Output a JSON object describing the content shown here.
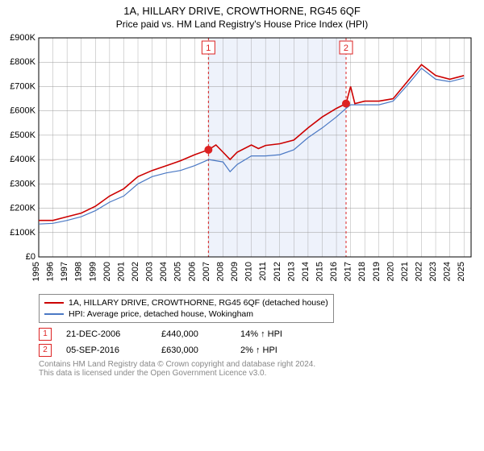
{
  "title": "1A, HILLARY DRIVE, CROWTHORNE, RG45 6QF",
  "subtitle": "Price paid vs. HM Land Registry's House Price Index (HPI)",
  "chart": {
    "type": "line",
    "background_color": "#ffffff",
    "grid_color": "#999999",
    "axis_color": "#000000",
    "band_fill": "#eef2fb",
    "event_dash_color": "#d22",
    "label_fontsize": 11,
    "title_fontsize": 13,
    "ylim": [
      0,
      900000
    ],
    "ytick_step": 100000,
    "ytick_labels": [
      "£0",
      "£100K",
      "£200K",
      "£300K",
      "£400K",
      "£500K",
      "£600K",
      "£700K",
      "£800K",
      "£900K"
    ],
    "x_years": [
      1995,
      1996,
      1997,
      1998,
      1999,
      2000,
      2001,
      2002,
      2003,
      2004,
      2005,
      2006,
      2007,
      2008,
      2009,
      2010,
      2011,
      2012,
      2013,
      2014,
      2015,
      2016,
      2017,
      2018,
      2019,
      2020,
      2021,
      2022,
      2023,
      2024,
      2025
    ],
    "xlim": [
      1995,
      2025.5
    ],
    "band": {
      "start": 2006.97,
      "end": 2016.68
    },
    "series": [
      {
        "name": "property",
        "label": "1A, HILLARY DRIVE, CROWTHORNE, RG45 6QF (detached house)",
        "color": "#cc0000",
        "line_width": 1.6,
        "points": [
          [
            1995,
            150000
          ],
          [
            1996,
            150000
          ],
          [
            1997,
            165000
          ],
          [
            1998,
            180000
          ],
          [
            1999,
            208000
          ],
          [
            2000,
            250000
          ],
          [
            2001,
            280000
          ],
          [
            2002,
            330000
          ],
          [
            2003,
            355000
          ],
          [
            2004,
            375000
          ],
          [
            2005,
            395000
          ],
          [
            2006,
            420000
          ],
          [
            2006.97,
            440000
          ],
          [
            2007.5,
            460000
          ],
          [
            2008,
            430000
          ],
          [
            2008.5,
            400000
          ],
          [
            2009,
            430000
          ],
          [
            2010,
            460000
          ],
          [
            2010.5,
            445000
          ],
          [
            2011,
            458000
          ],
          [
            2012,
            465000
          ],
          [
            2013,
            480000
          ],
          [
            2014,
            530000
          ],
          [
            2015,
            575000
          ],
          [
            2016,
            610000
          ],
          [
            2016.68,
            630000
          ],
          [
            2017,
            700000
          ],
          [
            2017.3,
            630000
          ],
          [
            2018,
            640000
          ],
          [
            2019,
            640000
          ],
          [
            2020,
            650000
          ],
          [
            2021,
            720000
          ],
          [
            2022,
            790000
          ],
          [
            2023,
            745000
          ],
          [
            2024,
            730000
          ],
          [
            2025,
            745000
          ]
        ]
      },
      {
        "name": "hpi",
        "label": "HPI: Average price, detached house, Wokingham",
        "color": "#4a78c4",
        "line_width": 1.2,
        "points": [
          [
            1995,
            135000
          ],
          [
            1996,
            138000
          ],
          [
            1997,
            150000
          ],
          [
            1998,
            165000
          ],
          [
            1999,
            190000
          ],
          [
            2000,
            225000
          ],
          [
            2001,
            250000
          ],
          [
            2002,
            300000
          ],
          [
            2003,
            330000
          ],
          [
            2004,
            345000
          ],
          [
            2005,
            355000
          ],
          [
            2006,
            375000
          ],
          [
            2007,
            400000
          ],
          [
            2008,
            390000
          ],
          [
            2008.5,
            350000
          ],
          [
            2009,
            380000
          ],
          [
            2010,
            415000
          ],
          [
            2011,
            415000
          ],
          [
            2012,
            420000
          ],
          [
            2013,
            440000
          ],
          [
            2014,
            490000
          ],
          [
            2015,
            530000
          ],
          [
            2016,
            575000
          ],
          [
            2016.68,
            610000
          ],
          [
            2017,
            625000
          ],
          [
            2018,
            625000
          ],
          [
            2019,
            625000
          ],
          [
            2020,
            640000
          ],
          [
            2021,
            705000
          ],
          [
            2022,
            775000
          ],
          [
            2023,
            730000
          ],
          [
            2024,
            720000
          ],
          [
            2025,
            735000
          ]
        ]
      }
    ],
    "event_markers": [
      {
        "id": "1",
        "x": 2006.97,
        "y": 440000,
        "color": "#d22"
      },
      {
        "id": "2",
        "x": 2016.68,
        "y": 630000,
        "color": "#d22"
      }
    ],
    "event_box_border": "#d22",
    "marker_fill": "#d22",
    "marker_size": 5
  },
  "legend": {
    "border_color": "#888888"
  },
  "events": [
    {
      "id": "1",
      "date": "21-DEC-2006",
      "price": "£440,000",
      "pct": "14% ↑ HPI",
      "border_color": "#d22",
      "text_color": "#d22"
    },
    {
      "id": "2",
      "date": "05-SEP-2016",
      "price": "£630,000",
      "pct": "2% ↑ HPI",
      "border_color": "#d22",
      "text_color": "#d22"
    }
  ],
  "attribution": {
    "line1": "Contains HM Land Registry data © Crown copyright and database right 2024.",
    "line2": "This data is licensed under the Open Government Licence v3.0.",
    "color": "#888888"
  }
}
